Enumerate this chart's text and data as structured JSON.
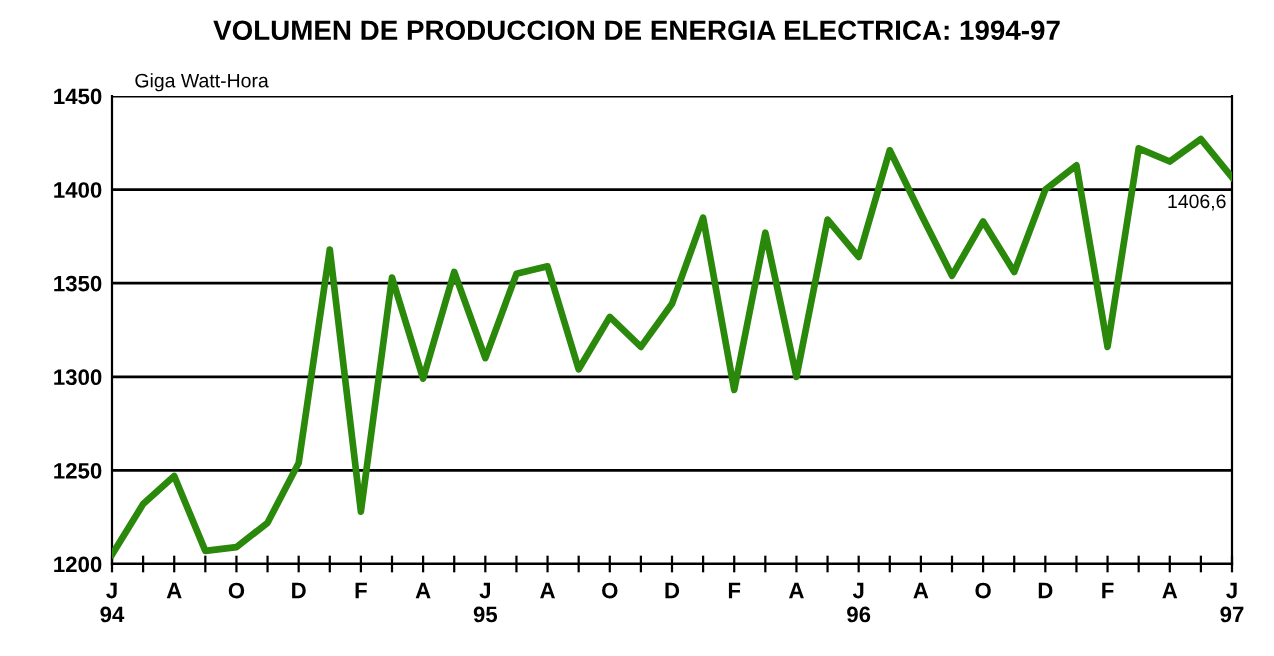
{
  "chart_data": {
    "type": "line",
    "title": "VOLUMEN DE PRODUCCION DE ENERGIA ELECTRICA: 1994-97",
    "ylabel": "Giga Watt-Hora",
    "categories": [
      "J\n94",
      null,
      "A",
      null,
      "O",
      null,
      "D",
      null,
      "F",
      null,
      "A",
      null,
      "J\n95",
      null,
      "A",
      null,
      "O",
      null,
      "D",
      null,
      "F",
      null,
      "A",
      null,
      "J\n96",
      null,
      "A",
      null,
      "O",
      null,
      "D",
      null,
      "F",
      null,
      "A",
      null,
      "J\n97"
    ],
    "series": [
      {
        "color": "#2a880a",
        "values": [
          1205,
          1232,
          1247,
          1207,
          1209,
          1222,
          1254,
          1368,
          1228,
          1353,
          1299,
          1356,
          1310,
          1355,
          1359,
          1304,
          1332,
          1316,
          1339,
          1385,
          1293,
          1377,
          1300,
          1384,
          1364,
          1421,
          1387,
          1354,
          1383,
          1356,
          1400,
          1413,
          1316,
          1422,
          1415,
          1427,
          1406.6
        ],
        "value_labels": [
          null,
          null,
          null,
          null,
          null,
          null,
          null,
          null,
          null,
          null,
          null,
          null,
          null,
          null,
          null,
          null,
          null,
          null,
          null,
          null,
          null,
          null,
          null,
          null,
          null,
          null,
          null,
          null,
          null,
          null,
          null,
          null,
          null,
          null,
          null,
          null,
          "1406,6"
        ]
      }
    ],
    "ylim": [
      1200,
      1450
    ],
    "yticks": [
      1200,
      1250,
      1300,
      1350,
      1400,
      1450
    ],
    "grid": "y",
    "marker": "none",
    "line_style": "solid"
  }
}
